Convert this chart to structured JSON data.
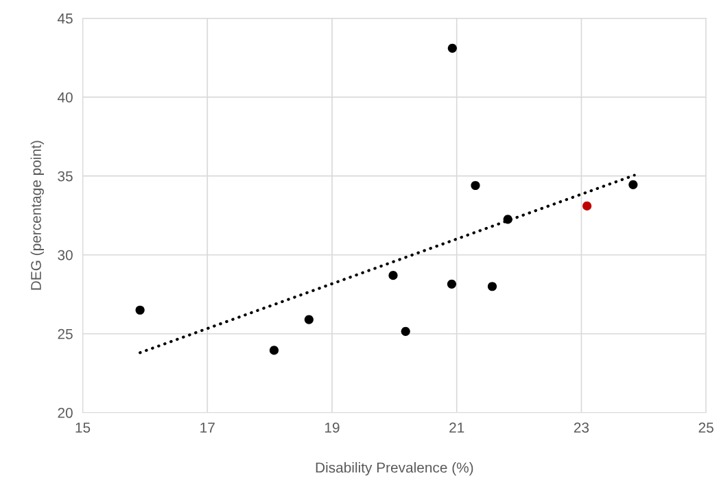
{
  "chart_data": {
    "type": "scatter",
    "xlabel": "Disability Prevalence (%)",
    "ylabel": "DEG (percentage point)",
    "xlim": [
      15,
      25
    ],
    "xticks": [
      15,
      17,
      19,
      21,
      23,
      25
    ],
    "ylim": [
      20,
      45
    ],
    "yticks": [
      20,
      25,
      30,
      35,
      40,
      45
    ],
    "grid": true,
    "marker": "circle",
    "series": [
      {
        "color": "#000000",
        "x": [
          15.92,
          18.07,
          18.63,
          19.98,
          20.18,
          20.92,
          20.93,
          21.3,
          21.57,
          21.82,
          23.83
        ],
        "values": [
          26.5,
          23.95,
          25.9,
          28.7,
          25.15,
          28.15,
          43.1,
          34.4,
          28.0,
          32.25,
          34.45
        ]
      },
      {
        "color": "#c00000",
        "x": [
          23.09
        ],
        "values": [
          33.1
        ]
      },
      {
        "type": "line",
        "color": "#000000",
        "line_style": "dotted",
        "marker": "none",
        "x": [
          15.92,
          23.85
        ],
        "values": [
          23.8,
          35.05
        ]
      }
    ]
  }
}
